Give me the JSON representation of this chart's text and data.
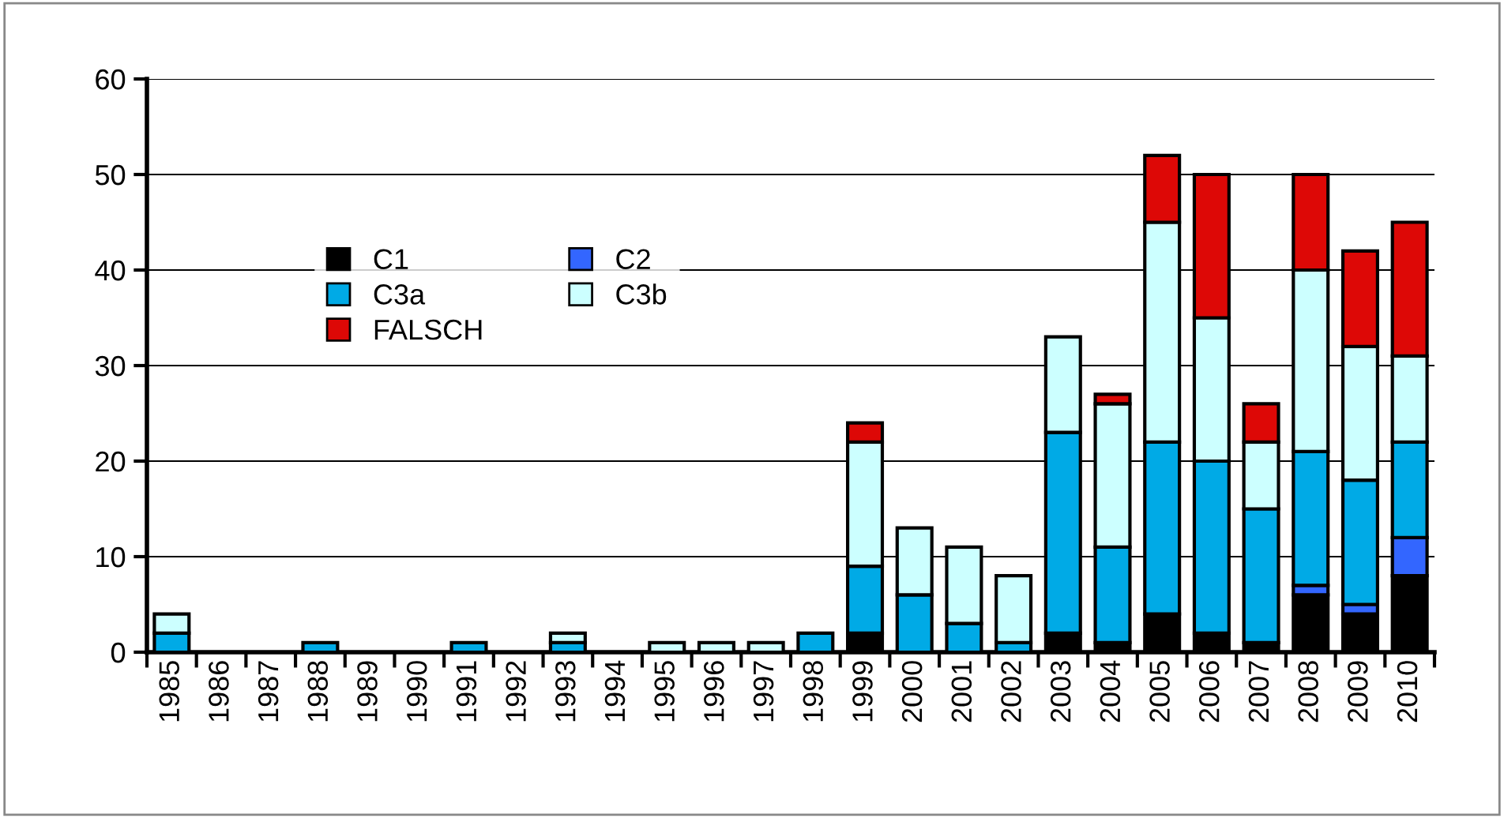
{
  "chart_data": {
    "type": "bar",
    "stacked": true,
    "categories": [
      "1985",
      "1986",
      "1987",
      "1988",
      "1989",
      "1990",
      "1991",
      "1992",
      "1993",
      "1994",
      "1995",
      "1996",
      "1997",
      "1998",
      "1999",
      "2000",
      "2001",
      "2002",
      "2003",
      "2004",
      "2005",
      "2006",
      "2007",
      "2008",
      "2009",
      "2010"
    ],
    "series": [
      {
        "name": "C1",
        "color": "#000000",
        "values": [
          0,
          0,
          0,
          0,
          0,
          0,
          0,
          0,
          0,
          0,
          0,
          0,
          0,
          0,
          2,
          0,
          0,
          0,
          2,
          1,
          4,
          2,
          1,
          6,
          4,
          8
        ]
      },
      {
        "name": "C2",
        "color": "#3366ff",
        "values": [
          0,
          0,
          0,
          0,
          0,
          0,
          0,
          0,
          0,
          0,
          0,
          0,
          0,
          0,
          0,
          0,
          0,
          0,
          0,
          0,
          0,
          0,
          0,
          1,
          1,
          4
        ]
      },
      {
        "name": "C3a",
        "color": "#00aae6",
        "values": [
          2,
          0,
          0,
          1,
          0,
          0,
          1,
          0,
          1,
          0,
          0,
          0,
          0,
          2,
          7,
          6,
          3,
          1,
          21,
          10,
          18,
          18,
          14,
          14,
          13,
          10
        ]
      },
      {
        "name": "C3b",
        "color": "#ccffff",
        "values": [
          2,
          0,
          0,
          0,
          0,
          0,
          0,
          0,
          1,
          0,
          1,
          1,
          1,
          0,
          13,
          7,
          8,
          7,
          10,
          15,
          23,
          15,
          7,
          19,
          14,
          9
        ]
      },
      {
        "name": "FALSCH",
        "color": "#dd0806",
        "values": [
          0,
          0,
          0,
          0,
          0,
          0,
          0,
          0,
          0,
          0,
          0,
          0,
          0,
          0,
          2,
          0,
          0,
          0,
          0,
          1,
          7,
          15,
          4,
          10,
          10,
          14
        ]
      }
    ],
    "ylim": [
      0,
      60
    ],
    "yticks": [
      0,
      10,
      20,
      30,
      40,
      50,
      60
    ],
    "grid": "y",
    "legend": "left"
  }
}
